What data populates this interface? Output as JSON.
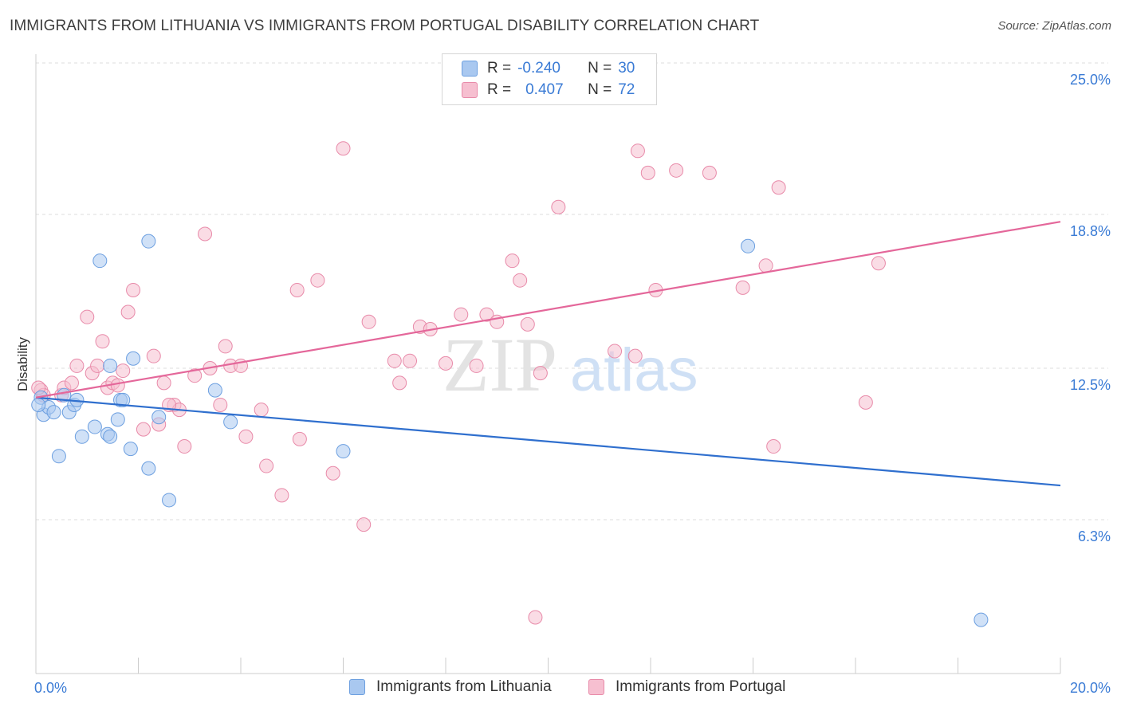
{
  "title": "IMMIGRANTS FROM LITHUANIA VS IMMIGRANTS FROM PORTUGAL DISABILITY CORRELATION CHART",
  "source": "Source: ZipAtlas.com",
  "watermark": {
    "zip": "ZIP",
    "atlas": "atlas"
  },
  "colors": {
    "lithuania_fill": "#a9c8f0",
    "lithuania_stroke": "#6c9fe0",
    "lithuania_line": "#2f6fce",
    "portugal_fill": "#f6bfd0",
    "portugal_stroke": "#e88aa9",
    "portugal_line": "#e4679a",
    "axis_label": "#3a7bd5"
  },
  "stats": {
    "row1": {
      "r_label": "R =",
      "r_value": "-0.240",
      "n_label": "N =",
      "n_value": "30"
    },
    "row2": {
      "r_label": "R =",
      "r_value": "0.407",
      "n_label": "N =",
      "n_value": "72"
    }
  },
  "legend": {
    "lithuania": "Immigrants from Lithuania",
    "portugal": "Immigrants from Portugal"
  },
  "chart_data": {
    "type": "scatter",
    "title": "IMMIGRANTS FROM LITHUANIA VS IMMIGRANTS FROM PORTUGAL DISABILITY CORRELATION CHART",
    "ylabel": "Disability",
    "xlabel": "",
    "xlim": [
      0,
      20
    ],
    "ylim": [
      0,
      25
    ],
    "x_tick_labels": [
      "0.0%",
      "20.0%"
    ],
    "y_ticks": [
      6.3,
      12.5,
      18.8,
      25.0
    ],
    "y_tick_labels": [
      "6.3%",
      "12.5%",
      "18.8%",
      "25.0%"
    ],
    "grid": "horizontal dashed",
    "legend_position": "bottom",
    "series": [
      {
        "name": "Immigrants from Lithuania",
        "points": [
          [
            0.1,
            11.3
          ],
          [
            0.15,
            10.6
          ],
          [
            0.25,
            10.9
          ],
          [
            0.35,
            10.7
          ],
          [
            0.45,
            8.9
          ],
          [
            0.55,
            11.4
          ],
          [
            0.65,
            10.7
          ],
          [
            0.75,
            11.0
          ],
          [
            0.8,
            11.2
          ],
          [
            0.9,
            9.7
          ],
          [
            1.15,
            10.1
          ],
          [
            1.25,
            16.9
          ],
          [
            1.4,
            9.8
          ],
          [
            1.45,
            9.7
          ],
          [
            1.45,
            12.6
          ],
          [
            1.6,
            10.4
          ],
          [
            1.65,
            11.2
          ],
          [
            1.7,
            11.2
          ],
          [
            1.85,
            9.2
          ],
          [
            1.9,
            12.9
          ],
          [
            2.2,
            8.4
          ],
          [
            2.2,
            17.7
          ],
          [
            2.4,
            10.5
          ],
          [
            2.6,
            7.1
          ],
          [
            3.5,
            11.6
          ],
          [
            3.8,
            10.3
          ],
          [
            6.0,
            9.1
          ],
          [
            13.9,
            17.5
          ],
          [
            18.45,
            2.2
          ],
          [
            0.05,
            11.0
          ]
        ],
        "trend": {
          "x0": 0,
          "y0": 11.3,
          "x1": 20,
          "y1": 7.7
        }
      },
      {
        "name": "Immigrants from Portugal",
        "points": [
          [
            0.1,
            11.6
          ],
          [
            0.15,
            11.4
          ],
          [
            0.5,
            11.4
          ],
          [
            0.55,
            11.7
          ],
          [
            0.7,
            11.9
          ],
          [
            0.8,
            12.6
          ],
          [
            1.0,
            14.6
          ],
          [
            1.1,
            12.3
          ],
          [
            1.2,
            12.6
          ],
          [
            1.3,
            13.6
          ],
          [
            1.4,
            11.7
          ],
          [
            1.5,
            11.9
          ],
          [
            1.6,
            11.8
          ],
          [
            1.7,
            12.4
          ],
          [
            1.8,
            14.8
          ],
          [
            1.9,
            15.7
          ],
          [
            2.1,
            10.0
          ],
          [
            2.3,
            13.0
          ],
          [
            2.4,
            10.2
          ],
          [
            2.5,
            11.9
          ],
          [
            2.7,
            11.0
          ],
          [
            2.8,
            10.8
          ],
          [
            2.9,
            9.3
          ],
          [
            3.1,
            12.2
          ],
          [
            3.3,
            18.0
          ],
          [
            3.4,
            12.5
          ],
          [
            3.6,
            11.0
          ],
          [
            3.7,
            13.4
          ],
          [
            3.8,
            12.6
          ],
          [
            4.0,
            12.6
          ],
          [
            4.1,
            9.7
          ],
          [
            4.4,
            10.8
          ],
          [
            4.5,
            8.5
          ],
          [
            4.8,
            7.3
          ],
          [
            5.1,
            15.7
          ],
          [
            5.15,
            9.6
          ],
          [
            5.5,
            16.1
          ],
          [
            5.8,
            8.2
          ],
          [
            6.0,
            21.5
          ],
          [
            6.4,
            6.1
          ],
          [
            6.5,
            14.4
          ],
          [
            7.0,
            12.8
          ],
          [
            7.1,
            11.9
          ],
          [
            7.3,
            12.8
          ],
          [
            7.5,
            14.2
          ],
          [
            7.7,
            14.1
          ],
          [
            8.0,
            12.7
          ],
          [
            8.3,
            14.7
          ],
          [
            8.6,
            12.6
          ],
          [
            8.8,
            14.7
          ],
          [
            9.0,
            14.4
          ],
          [
            9.3,
            16.9
          ],
          [
            9.45,
            16.1
          ],
          [
            9.6,
            14.3
          ],
          [
            9.75,
            2.3
          ],
          [
            9.85,
            12.3
          ],
          [
            10.2,
            19.1
          ],
          [
            11.3,
            13.2
          ],
          [
            11.7,
            13.0
          ],
          [
            11.75,
            21.4
          ],
          [
            11.95,
            20.5
          ],
          [
            12.1,
            15.7
          ],
          [
            12.5,
            20.6
          ],
          [
            13.15,
            20.5
          ],
          [
            13.8,
            15.8
          ],
          [
            14.25,
            16.7
          ],
          [
            14.4,
            9.3
          ],
          [
            14.5,
            19.9
          ],
          [
            16.2,
            11.1
          ],
          [
            16.45,
            16.8
          ],
          [
            0.05,
            11.7
          ],
          [
            2.6,
            11.0
          ]
        ],
        "trend": {
          "x0": 0,
          "y0": 11.3,
          "x1": 20,
          "y1": 18.5
        }
      }
    ]
  }
}
